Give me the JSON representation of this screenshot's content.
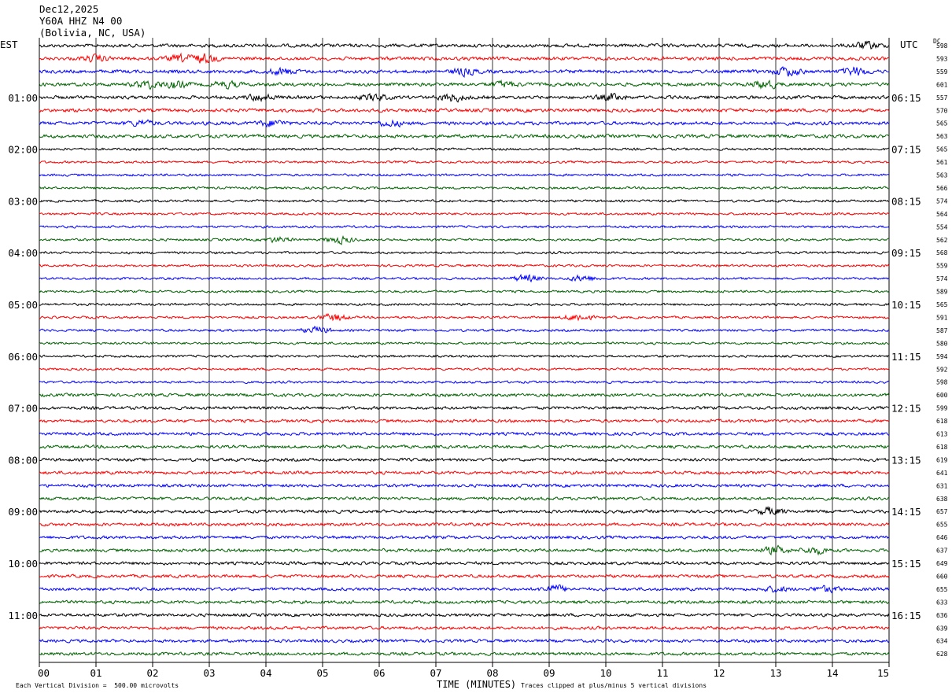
{
  "header": {
    "date": "Dec12,2025",
    "station": "Y60A HHZ N4 00",
    "location": "(Bolivia, NC, USA)",
    "left_tz": "EST",
    "right_tz": "UTC",
    "dc_label": "DC"
  },
  "footer": {
    "scale_note": "Each Vertical Division =  500.00 microvolts",
    "xlabel": "TIME (MINUTES)",
    "clip_note": "Traces clipped at plus/minus 5 vertical divisions"
  },
  "chart_data": {
    "type": "line",
    "title": "Dec12,2025 Y60A HHZ N4 00 (Bolivia, NC, USA)",
    "xlabel": "TIME (MINUTES)",
    "xlim": [
      0,
      15
    ],
    "x_ticks": [
      "00",
      "01",
      "02",
      "03",
      "04",
      "05",
      "06",
      "07",
      "08",
      "09",
      "10",
      "11",
      "12",
      "13",
      "14",
      "15"
    ],
    "grid": "vertical",
    "trace_colors": [
      "#000000",
      "#ff0000",
      "#0000ff",
      "#006400"
    ],
    "left_labels": [
      "01:00",
      "02:00",
      "03:00",
      "04:00",
      "05:00",
      "06:00",
      "07:00",
      "08:00",
      "09:00",
      "10:00",
      "11:00"
    ],
    "right_labels": [
      "06:15",
      "07:15",
      "08:15",
      "09:15",
      "10:15",
      "11:15",
      "12:15",
      "13:15",
      "14:15",
      "15:15",
      "16:15"
    ],
    "dc_offsets": [
      598,
      593,
      559,
      601,
      557,
      570,
      565,
      563,
      565,
      561,
      563,
      566,
      574,
      564,
      554,
      562,
      568,
      559,
      574,
      589,
      565,
      591,
      587,
      580,
      594,
      592,
      598,
      600,
      599,
      618,
      613,
      618,
      619,
      641,
      631,
      638,
      657,
      655,
      646,
      637,
      649,
      660,
      655,
      633,
      636,
      639,
      634,
      628
    ],
    "events": [
      {
        "trace": 0,
        "minute": 14.6,
        "amp": 1.8
      },
      {
        "trace": 1,
        "minute": 1.0,
        "amp": 1.4
      },
      {
        "trace": 1,
        "minute": 2.5,
        "amp": 1.6
      },
      {
        "trace": 1,
        "minute": 2.9,
        "amp": 2.0
      },
      {
        "trace": 2,
        "minute": 4.3,
        "amp": 1.6
      },
      {
        "trace": 2,
        "minute": 7.5,
        "amp": 1.6
      },
      {
        "trace": 2,
        "minute": 13.2,
        "amp": 2.2
      },
      {
        "trace": 2,
        "minute": 14.4,
        "amp": 2.0
      },
      {
        "trace": 3,
        "minute": 1.9,
        "amp": 1.8
      },
      {
        "trace": 3,
        "minute": 2.4,
        "amp": 1.6
      },
      {
        "trace": 3,
        "minute": 3.3,
        "amp": 1.5
      },
      {
        "trace": 3,
        "minute": 8.2,
        "amp": 1.4
      },
      {
        "trace": 3,
        "minute": 12.8,
        "amp": 2.0
      },
      {
        "trace": 4,
        "minute": 3.9,
        "amp": 1.6
      },
      {
        "trace": 4,
        "minute": 5.9,
        "amp": 1.5
      },
      {
        "trace": 4,
        "minute": 7.3,
        "amp": 2.0
      },
      {
        "trace": 4,
        "minute": 10.1,
        "amp": 1.6
      },
      {
        "trace": 6,
        "minute": 1.8,
        "amp": 1.3
      },
      {
        "trace": 6,
        "minute": 4.1,
        "amp": 1.6
      },
      {
        "trace": 6,
        "minute": 6.2,
        "amp": 1.4
      },
      {
        "trace": 15,
        "minute": 4.2,
        "amp": 1.2
      },
      {
        "trace": 15,
        "minute": 5.3,
        "amp": 1.8
      },
      {
        "trace": 18,
        "minute": 8.6,
        "amp": 1.8
      },
      {
        "trace": 18,
        "minute": 9.6,
        "amp": 1.6
      },
      {
        "trace": 21,
        "minute": 5.2,
        "amp": 1.8
      },
      {
        "trace": 21,
        "minute": 9.5,
        "amp": 1.8
      },
      {
        "trace": 22,
        "minute": 4.9,
        "amp": 1.6
      },
      {
        "trace": 36,
        "minute": 12.9,
        "amp": 1.9
      },
      {
        "trace": 39,
        "minute": 13.0,
        "amp": 1.8
      },
      {
        "trace": 39,
        "minute": 13.7,
        "amp": 1.6
      },
      {
        "trace": 42,
        "minute": 9.1,
        "amp": 1.8
      },
      {
        "trace": 42,
        "minute": 13.0,
        "amp": 1.3
      },
      {
        "trace": 42,
        "minute": 13.9,
        "amp": 1.4
      }
    ]
  }
}
